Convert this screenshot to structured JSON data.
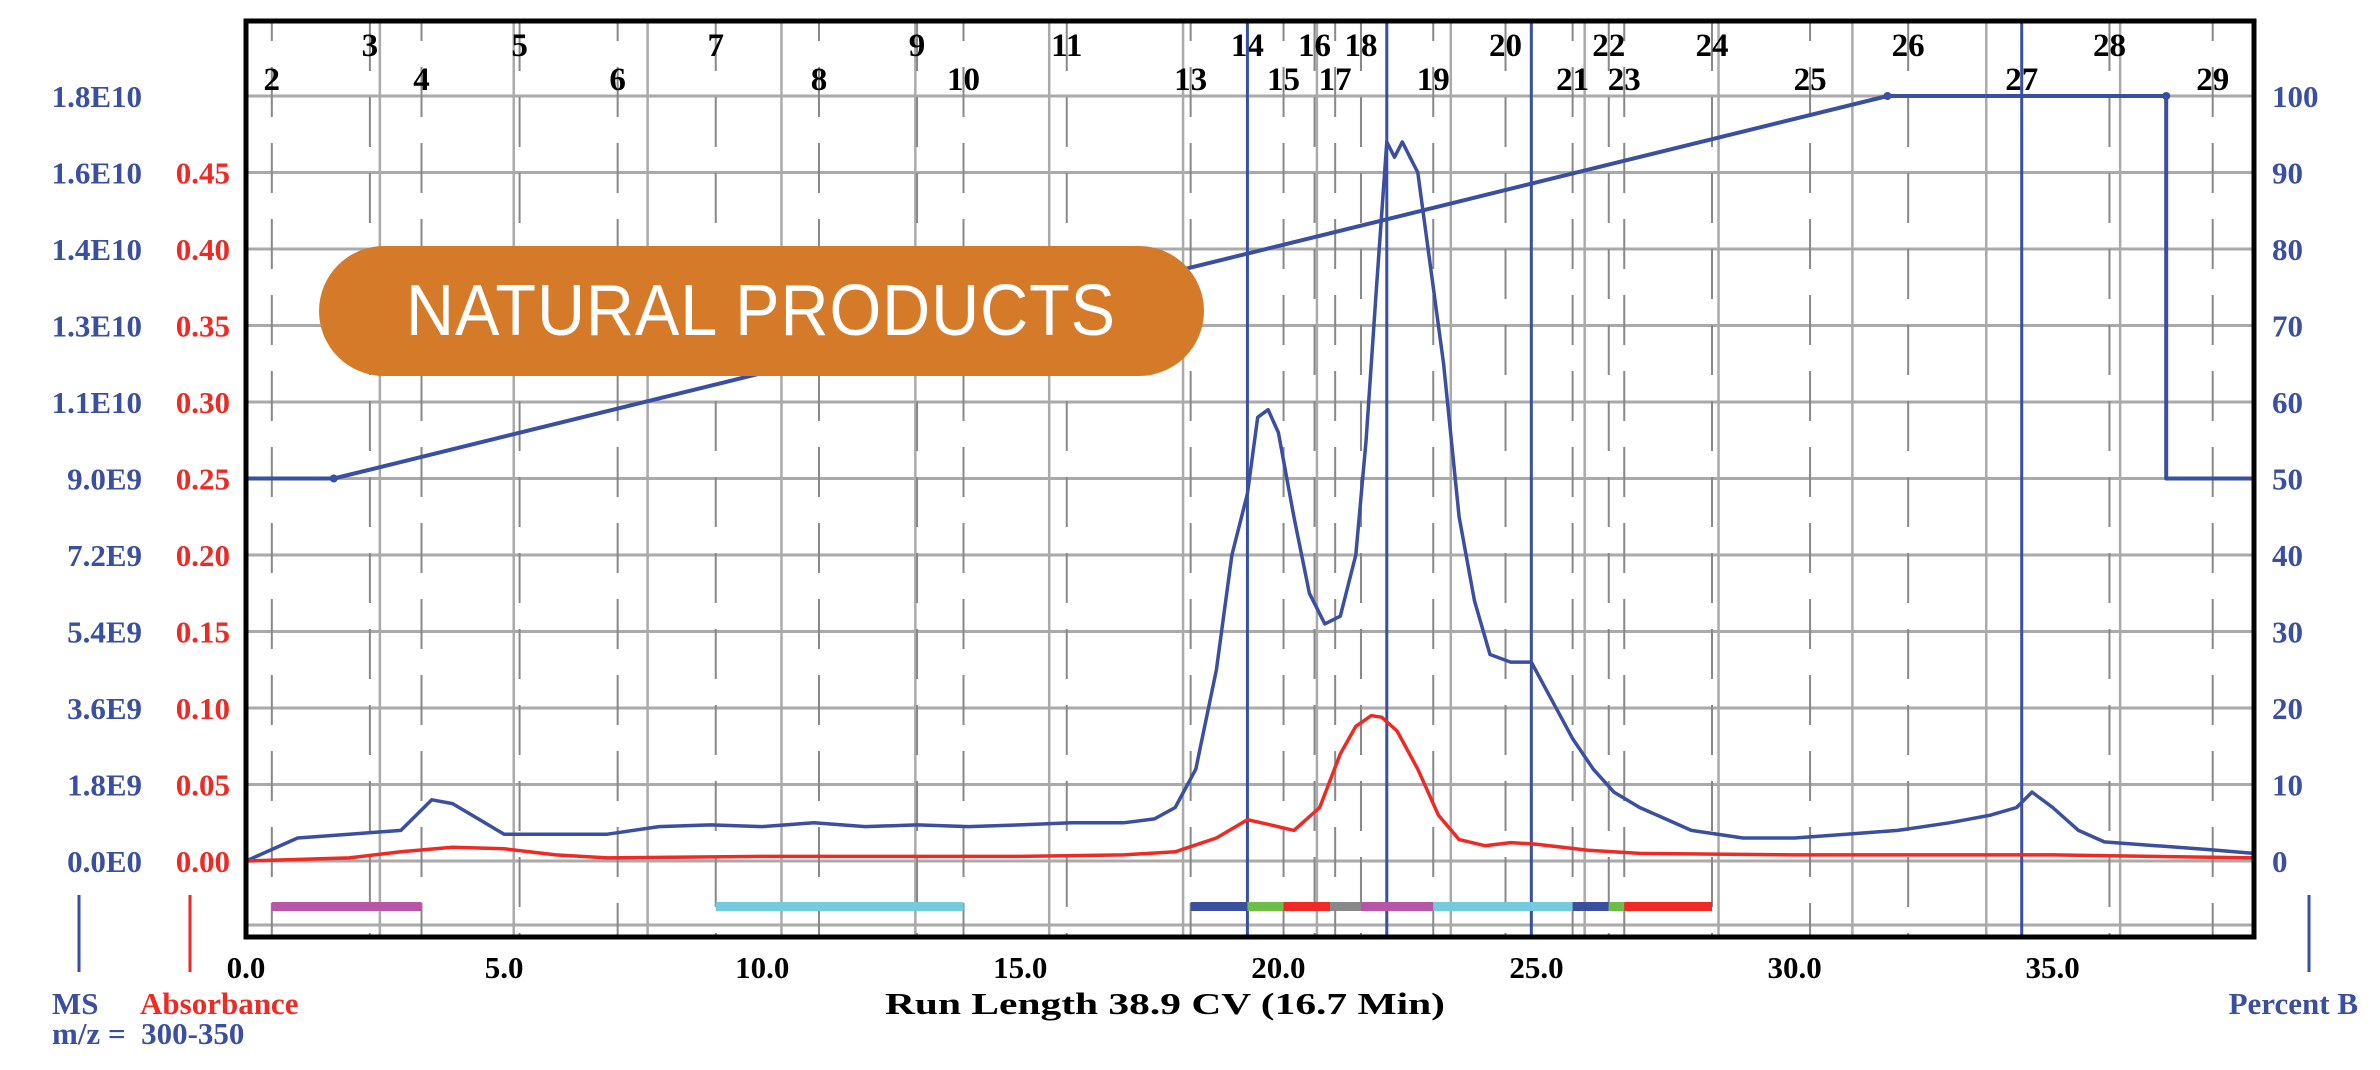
{
  "chart_data": {
    "type": "line",
    "title": "",
    "banner": "NATURAL PRODUCTS",
    "xlabel": "Run Length 38.9 CV (16.7 Min)",
    "xlim": [
      0,
      38.9
    ],
    "x_ticks": [
      "0.0",
      "5.0",
      "10.0",
      "15.0",
      "20.0",
      "25.0",
      "30.0",
      "35.0"
    ],
    "grid": true,
    "axes": {
      "ms": {
        "label": "MS",
        "sublabel": "m/z =  300-350",
        "color": "#3A4FA0",
        "ylim": [
          0,
          18000000000
        ],
        "ticks": [
          "0.0E0",
          "1.8E9",
          "3.6E9",
          "5.4E9",
          "7.2E9",
          "9.0E9",
          "1.1E10",
          "1.3E10",
          "1.4E10",
          "1.6E10",
          "1.8E10"
        ]
      },
      "absorbance": {
        "label": "Absorbance",
        "color": "#EE2A24",
        "ylim": [
          0,
          0.5
        ],
        "ticks": [
          "0.00",
          "0.05",
          "0.10",
          "0.15",
          "0.20",
          "0.25",
          "0.30",
          "0.35",
          "0.40",
          "0.45"
        ]
      },
      "percent_b": {
        "label": "Percent B",
        "color": "#3A4FA0",
        "ylim": [
          0,
          100
        ],
        "ticks": [
          "0",
          "10",
          "20",
          "30",
          "40",
          "50",
          "60",
          "70",
          "80",
          "90",
          "100"
        ]
      }
    },
    "series": [
      {
        "key": "ms",
        "axis": "ms",
        "color": "#3A4FA0",
        "x": [
          0,
          1,
          2,
          3,
          3.3,
          3.6,
          4,
          4.5,
          5,
          6,
          7,
          8,
          9,
          10,
          11,
          12,
          13,
          14,
          15,
          16,
          17,
          17.6,
          18,
          18.4,
          18.8,
          19.1,
          19.4,
          19.6,
          19.8,
          20,
          20.3,
          20.6,
          20.9,
          21.2,
          21.5,
          21.7,
          21.9,
          22.1,
          22.25,
          22.4,
          22.55,
          22.7,
          22.9,
          23.2,
          23.5,
          23.8,
          24.1,
          24.5,
          24.9,
          25.3,
          25.7,
          26.1,
          26.5,
          27,
          27.5,
          28,
          29,
          30,
          31,
          32,
          33,
          33.8,
          34.3,
          34.6,
          35,
          35.5,
          36,
          37,
          38,
          38.9
        ],
        "y": [
          0,
          540000000,
          630000000,
          720000000,
          1080000000,
          1440000000,
          1350000000,
          990000000,
          630000000,
          630000000,
          630000000,
          810000000,
          850000000,
          810000000,
          900000000,
          810000000,
          850000000,
          810000000,
          850000000,
          900000000,
          900000000,
          990000000,
          1260000000,
          2160000000,
          4500000000,
          7200000000,
          8640000000,
          10440000000,
          10620000000,
          10080000000,
          8100000000,
          6300000000,
          5580000000,
          5760000000,
          7200000000,
          9900000000,
          13500000000,
          16920000000,
          16560000000,
          16920000000,
          16560000000,
          16200000000,
          14400000000,
          11700000000,
          8100000000,
          6120000000,
          4860000000,
          4680000000,
          4680000000,
          3780000000,
          2880000000,
          2160000000,
          1620000000,
          1260000000,
          990000000,
          720000000,
          540000000,
          540000000,
          630000000,
          720000000,
          900000000,
          1080000000,
          1260000000,
          1620000000,
          1260000000,
          720000000,
          450000000,
          360000000,
          270000000,
          180000000
        ]
      },
      {
        "key": "absorbance",
        "axis": "absorbance",
        "color": "#EE2A24",
        "x": [
          0,
          2,
          3,
          4,
          5,
          6,
          7,
          10,
          15,
          17,
          18,
          18.8,
          19.4,
          19.8,
          20.3,
          20.8,
          21.2,
          21.5,
          21.8,
          22,
          22.3,
          22.7,
          23.1,
          23.5,
          24,
          24.5,
          25,
          26,
          27,
          30,
          35,
          38.9
        ],
        "y": [
          0,
          0.002,
          0.006,
          0.009,
          0.008,
          0.004,
          0.002,
          0.003,
          0.003,
          0.004,
          0.006,
          0.015,
          0.027,
          0.024,
          0.02,
          0.035,
          0.07,
          0.088,
          0.095,
          0.094,
          0.085,
          0.06,
          0.03,
          0.014,
          0.01,
          0.012,
          0.011,
          0.007,
          0.005,
          0.004,
          0.004,
          0.002
        ]
      },
      {
        "key": "gradient",
        "axis": "percent_b",
        "color": "#3A4FA0",
        "x": [
          0,
          1.7,
          31.8,
          37.2,
          37.2,
          38.9
        ],
        "y": [
          50,
          50,
          100,
          100,
          50,
          50
        ]
      }
    ],
    "fractions": [
      {
        "n": "2",
        "x": 0.5,
        "row": "low"
      },
      {
        "n": "3",
        "x": 2.4,
        "row": "high"
      },
      {
        "n": "4",
        "x": 3.4,
        "row": "low"
      },
      {
        "n": "5",
        "x": 5.3,
        "row": "high"
      },
      {
        "n": "6",
        "x": 7.2,
        "row": "low"
      },
      {
        "n": "7",
        "x": 9.1,
        "row": "high"
      },
      {
        "n": "8",
        "x": 11.1,
        "row": "low"
      },
      {
        "n": "9",
        "x": 13.0,
        "row": "high"
      },
      {
        "n": "10",
        "x": 13.9,
        "row": "low"
      },
      {
        "n": "11",
        "x": 15.9,
        "row": "high"
      },
      {
        "n": "13",
        "x": 18.3,
        "row": "low"
      },
      {
        "n": "14",
        "x": 19.4,
        "row": "high"
      },
      {
        "n": "15",
        "x": 20.1,
        "row": "low"
      },
      {
        "n": "16",
        "x": 20.7,
        "row": "high"
      },
      {
        "n": "17",
        "x": 21.1,
        "row": "low"
      },
      {
        "n": "18",
        "x": 21.6,
        "row": "high"
      },
      {
        "n": "19",
        "x": 23.0,
        "row": "low"
      },
      {
        "n": "20",
        "x": 24.4,
        "row": "high"
      },
      {
        "n": "21",
        "x": 25.7,
        "row": "low"
      },
      {
        "n": "22",
        "x": 26.4,
        "row": "high"
      },
      {
        "n": "23",
        "x": 26.7,
        "row": "low"
      },
      {
        "n": "24",
        "x": 28.4,
        "row": "high"
      },
      {
        "n": "25",
        "x": 30.3,
        "row": "low"
      },
      {
        "n": "26",
        "x": 32.2,
        "row": "high"
      },
      {
        "n": "27",
        "x": 34.4,
        "row": "low"
      },
      {
        "n": "28",
        "x": 36.1,
        "row": "high"
      },
      {
        "n": "29",
        "x": 38.1,
        "row": "low"
      }
    ],
    "fraction_bars": [
      {
        "from": 0.5,
        "to": 3.4,
        "color": "#B955A6"
      },
      {
        "from": 9.1,
        "to": 13.9,
        "color": "#72CCDD"
      },
      {
        "from": 18.3,
        "to": 19.4,
        "color": "#3A4FA0"
      },
      {
        "from": 19.4,
        "to": 20.1,
        "color": "#6CBE45"
      },
      {
        "from": 20.1,
        "to": 21.0,
        "color": "#EE2A24"
      },
      {
        "from": 21.0,
        "to": 21.6,
        "color": "#888888"
      },
      {
        "from": 21.6,
        "to": 23.0,
        "color": "#B955A6"
      },
      {
        "from": 23.0,
        "to": 25.7,
        "color": "#72CCDD"
      },
      {
        "from": 25.7,
        "to": 26.4,
        "color": "#3A4FA0"
      },
      {
        "from": 26.4,
        "to": 26.7,
        "color": "#6CBE45"
      },
      {
        "from": 26.7,
        "to": 28.4,
        "color": "#EE2A24"
      }
    ],
    "markers": [
      19.4,
      22.1,
      24.9,
      34.4
    ],
    "banner_color": "#D57A29"
  }
}
